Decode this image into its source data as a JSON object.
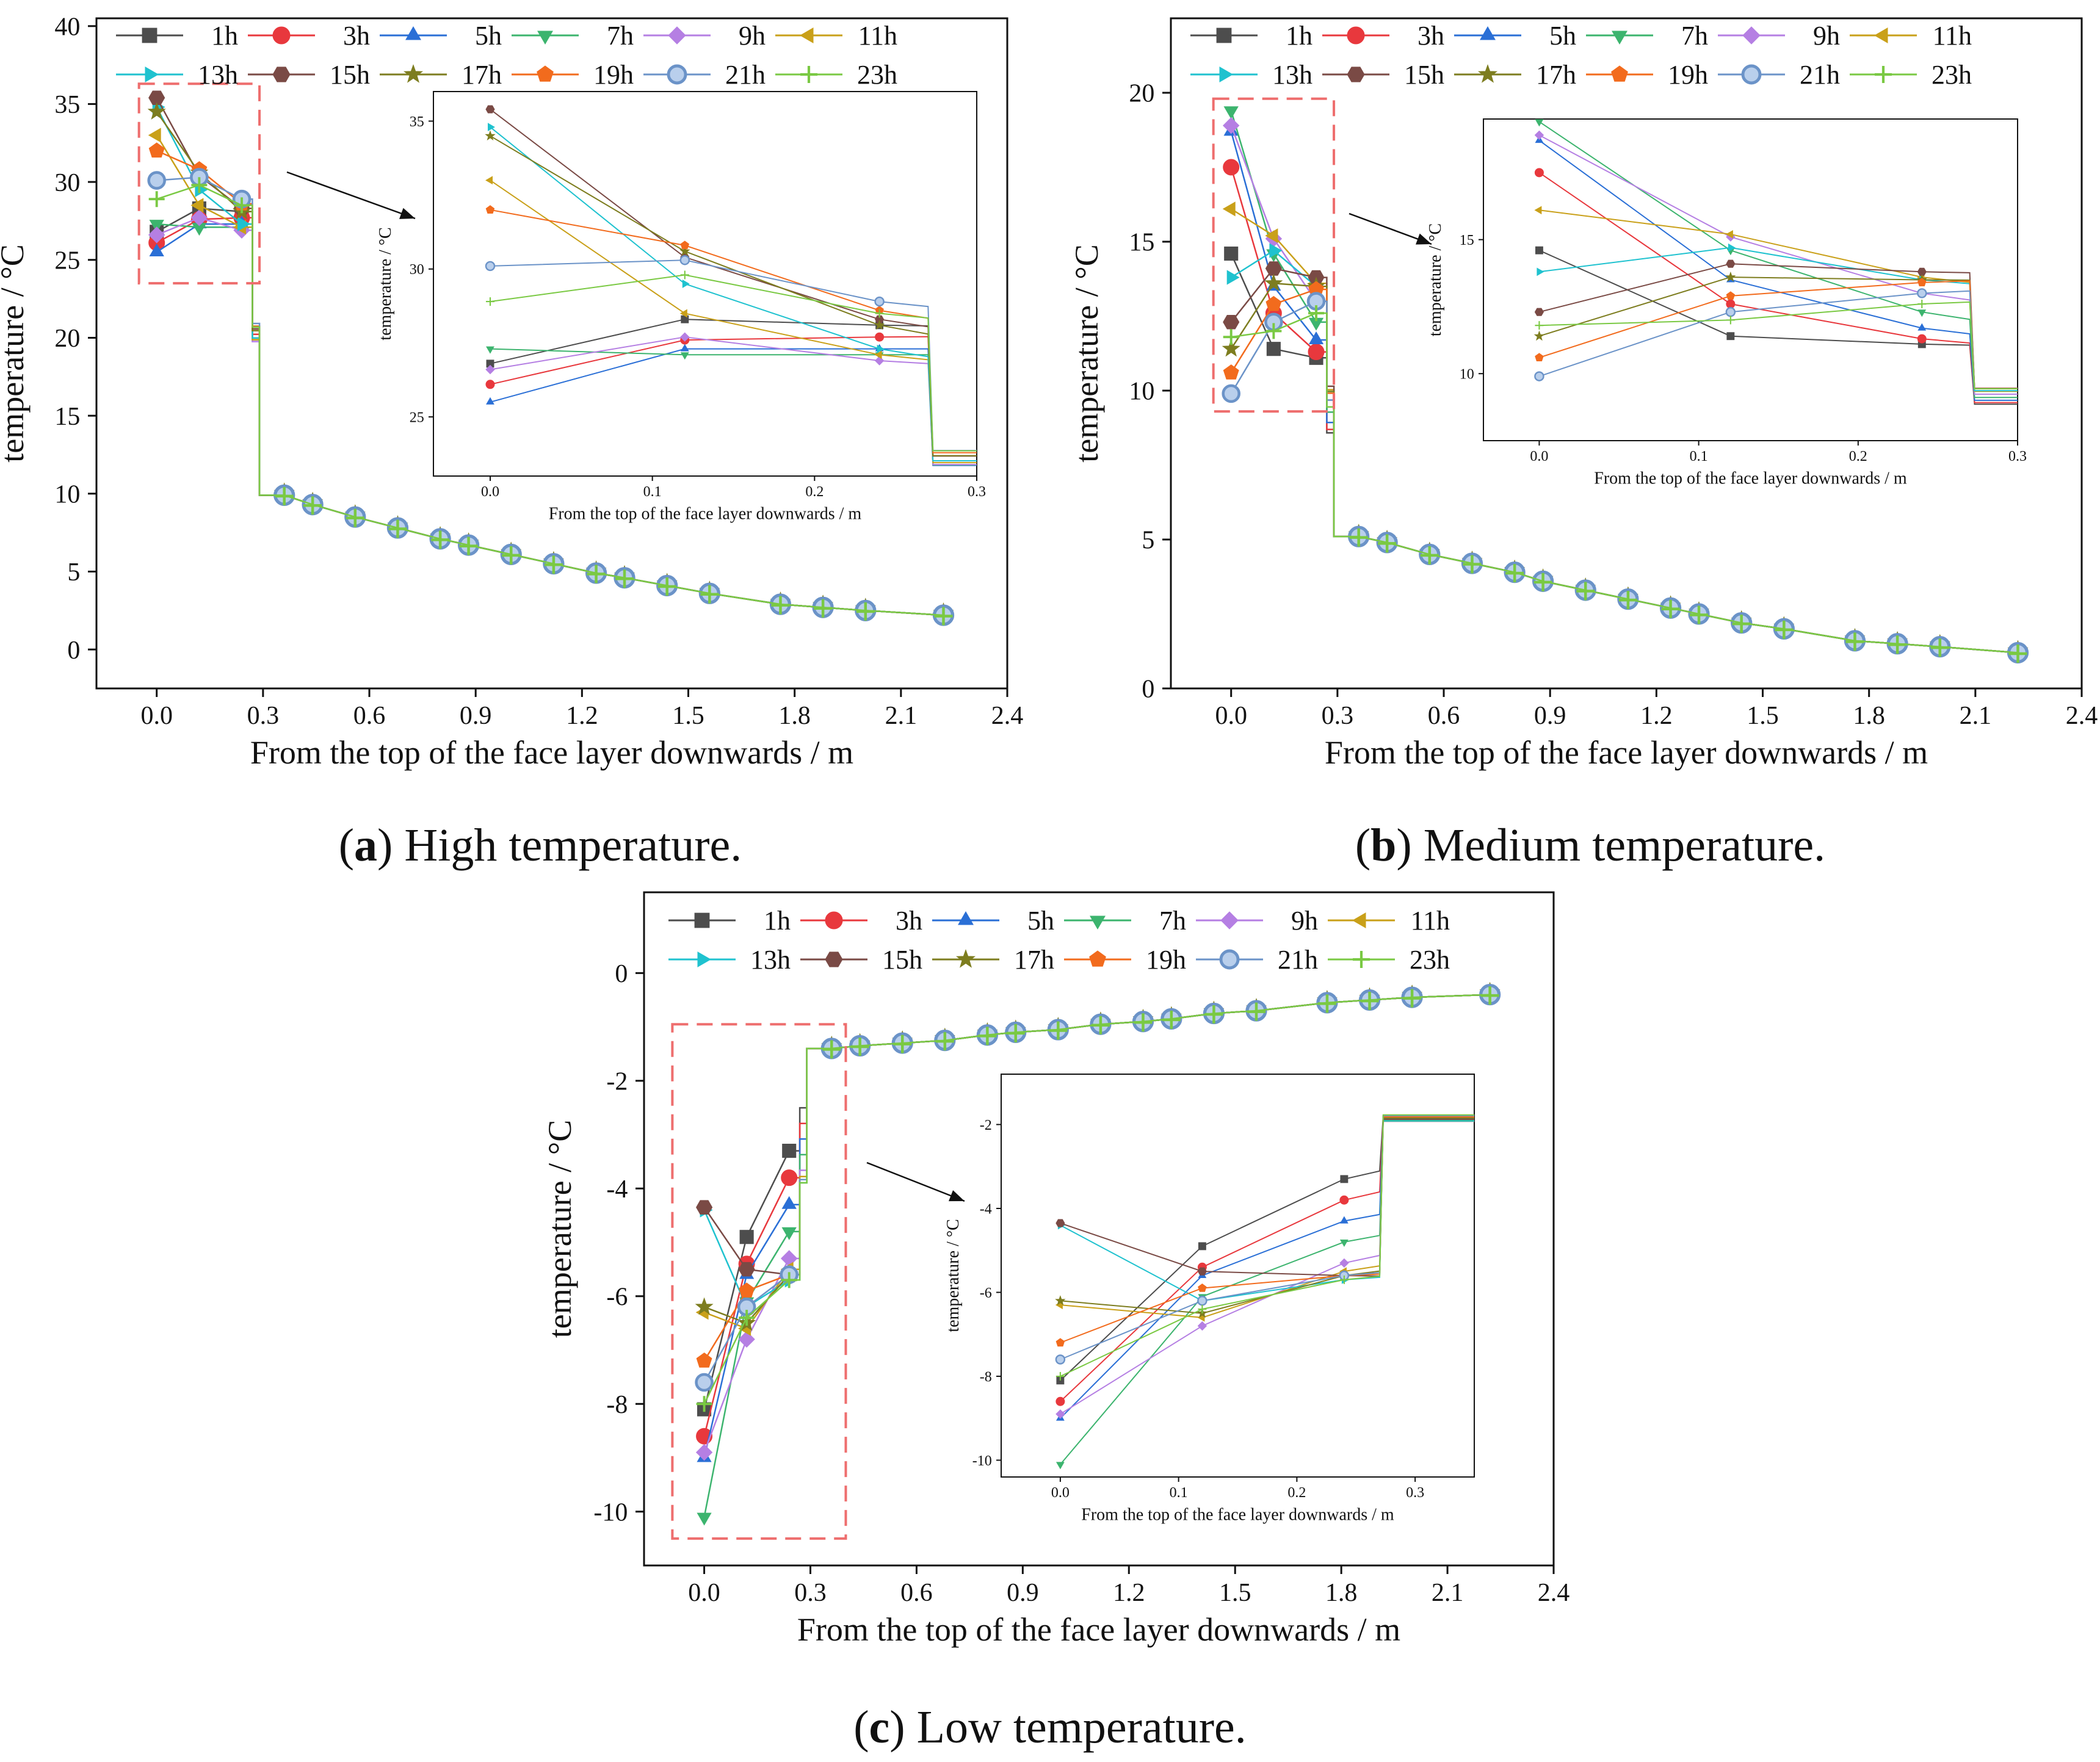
{
  "figure": {
    "panels": [
      {
        "letter": "a",
        "caption": "High temperature."
      },
      {
        "letter": "b",
        "caption": "Medium temperature."
      },
      {
        "letter": "c",
        "caption": "Low temperature."
      }
    ]
  },
  "series_styles": [
    {
      "name": "1h",
      "color": "#4d4d4d",
      "marker": "square"
    },
    {
      "name": "3h",
      "color": "#e8383d",
      "marker": "circle"
    },
    {
      "name": "5h",
      "color": "#2a6fd6",
      "marker": "triangle-up"
    },
    {
      "name": "7h",
      "color": "#3cb46e",
      "marker": "triangle-down"
    },
    {
      "name": "9h",
      "color": "#b57fe3",
      "marker": "diamond"
    },
    {
      "name": "11h",
      "color": "#c9a019",
      "marker": "triangle-left"
    },
    {
      "name": "13h",
      "color": "#1fc2cf",
      "marker": "triangle-right"
    },
    {
      "name": "15h",
      "color": "#7a4a45",
      "marker": "hexagon"
    },
    {
      "name": "17h",
      "color": "#7d7d1f",
      "marker": "star"
    },
    {
      "name": "19h",
      "color": "#f26b1d",
      "marker": "pentagon"
    },
    {
      "name": "21h",
      "color": "#6b93c8",
      "marker": "sphere"
    },
    {
      "name": "23h",
      "color": "#7ac943",
      "marker": "plus"
    }
  ],
  "chart_data": [
    {
      "type": "line",
      "panel": "a",
      "title": "High temperature.",
      "xlabel": "From the top of the face layer downwards / m",
      "ylabel": "temperature / °C",
      "xlim": [
        -0.17,
        2.4
      ],
      "ylim": [
        -2.5,
        40.5
      ],
      "xticks": [
        "0.0",
        "0.3",
        "0.6",
        "0.9",
        "1.2",
        "1.5",
        "1.8",
        "2.1",
        "2.4"
      ],
      "yticks": [
        "0",
        "5",
        "10",
        "15",
        "20",
        "25",
        "30",
        "35",
        "40"
      ],
      "series": [
        {
          "name": "1h",
          "top": [
            26.8,
            28.3,
            28.1
          ]
        },
        {
          "name": "3h",
          "top": [
            26.1,
            27.6,
            27.7
          ]
        },
        {
          "name": "5h",
          "top": [
            25.5,
            27.3,
            27.3
          ]
        },
        {
          "name": "7h",
          "top": [
            27.3,
            27.1,
            27.1
          ]
        },
        {
          "name": "9h",
          "top": [
            26.6,
            27.7,
            26.9
          ]
        },
        {
          "name": "11h",
          "top": [
            33.0,
            28.5,
            27.1
          ]
        },
        {
          "name": "13h",
          "top": [
            34.8,
            29.5,
            27.3
          ]
        },
        {
          "name": "15h",
          "top": [
            35.4,
            30.4,
            28.3
          ]
        },
        {
          "name": "17h",
          "top": [
            34.5,
            30.6,
            28.1
          ]
        },
        {
          "name": "19h",
          "top": [
            32.0,
            30.8,
            28.6
          ]
        },
        {
          "name": "21h",
          "top": [
            30.1,
            30.3,
            28.9
          ]
        },
        {
          "name": "23h",
          "top": [
            28.9,
            29.8,
            28.5
          ]
        }
      ],
      "bottom": {
        "x": [
          0.36,
          0.44,
          0.56,
          0.68,
          0.8,
          0.88,
          1.0,
          1.12,
          1.24,
          1.32,
          1.44,
          1.56,
          1.76,
          1.88,
          2.0,
          2.22
        ],
        "y": [
          9.9,
          9.3,
          8.5,
          7.8,
          7.1,
          6.7,
          6.1,
          5.5,
          4.9,
          4.6,
          4.1,
          3.6,
          2.9,
          2.7,
          2.5,
          2.2
        ]
      },
      "box": {
        "x": [
          -0.05,
          0.29
        ],
        "y": [
          23.5,
          36.3
        ]
      },
      "inset": {
        "xlabel": "From the top of the face layer downwards / m",
        "ylabel": "temperature / °C",
        "xlim": [
          -0.035,
          0.3
        ],
        "ylim": [
          23.0,
          36.0
        ],
        "xticks": [
          "0.0",
          "0.1",
          "0.2",
          "0.3"
        ],
        "yticks": [
          "25",
          "30",
          "35"
        ],
        "after_step": 23.0
      }
    },
    {
      "type": "line",
      "panel": "b",
      "title": "Medium temperature.",
      "xlabel": "From the top of the face layer downwards / m",
      "ylabel": "temperature / °C",
      "xlim": [
        -0.17,
        2.4
      ],
      "ylim": [
        0,
        22.5
      ],
      "xticks": [
        "0.0",
        "0.3",
        "0.6",
        "0.9",
        "1.2",
        "1.5",
        "1.8",
        "2.1",
        "2.4"
      ],
      "yticks": [
        "0",
        "5",
        "10",
        "15",
        "20"
      ],
      "series": [
        {
          "name": "1h",
          "top": [
            14.6,
            11.4,
            11.1
          ]
        },
        {
          "name": "3h",
          "top": [
            17.5,
            12.6,
            11.3
          ]
        },
        {
          "name": "5h",
          "top": [
            18.7,
            13.5,
            11.7
          ]
        },
        {
          "name": "7h",
          "top": [
            19.4,
            14.6,
            12.3
          ]
        },
        {
          "name": "9h",
          "top": [
            18.9,
            15.1,
            13.0
          ]
        },
        {
          "name": "11h",
          "top": [
            16.1,
            15.2,
            13.6
          ]
        },
        {
          "name": "13h",
          "top": [
            13.8,
            14.7,
            13.5
          ]
        },
        {
          "name": "15h",
          "top": [
            12.3,
            14.1,
            13.8
          ]
        },
        {
          "name": "17h",
          "top": [
            11.4,
            13.6,
            13.5
          ]
        },
        {
          "name": "19h",
          "top": [
            10.6,
            12.9,
            13.4
          ]
        },
        {
          "name": "21h",
          "top": [
            9.9,
            12.3,
            13.0
          ]
        },
        {
          "name": "23h",
          "top": [
            11.8,
            12.0,
            12.6
          ]
        }
      ],
      "bottom": {
        "x": [
          0.36,
          0.44,
          0.56,
          0.68,
          0.8,
          0.88,
          1.0,
          1.12,
          1.24,
          1.32,
          1.44,
          1.56,
          1.76,
          1.88,
          2.0,
          2.22
        ],
        "y": [
          5.1,
          4.9,
          4.5,
          4.2,
          3.9,
          3.6,
          3.3,
          3.0,
          2.7,
          2.5,
          2.2,
          2.0,
          1.6,
          1.5,
          1.4,
          1.2
        ]
      },
      "box": {
        "x": [
          -0.05,
          0.29
        ],
        "y": [
          9.3,
          19.8
        ]
      },
      "inset": {
        "xlabel": "From the top of the face layer downwards / m",
        "ylabel": "temperature / °C",
        "xlim": [
          -0.035,
          0.3
        ],
        "ylim": [
          7.5,
          19.5
        ],
        "xticks": [
          "0.0",
          "0.1",
          "0.2",
          "0.3"
        ],
        "yticks": [
          "10",
          "15"
        ],
        "after_step": 8.8
      }
    },
    {
      "type": "line",
      "panel": "c",
      "title": "Low temperature.",
      "xlabel": "From the top of the face layer downwards / m",
      "ylabel": "temperature / °C",
      "xlim": [
        -0.17,
        2.4
      ],
      "ylim": [
        -11,
        1.5
      ],
      "xticks": [
        "0.0",
        "0.3",
        "0.6",
        "0.9",
        "1.2",
        "1.5",
        "1.8",
        "2.1",
        "2.4"
      ],
      "yticks": [
        "0",
        "-2",
        "-4",
        "-6",
        "-8",
        "-10"
      ],
      "series": [
        {
          "name": "1h",
          "top": [
            -8.1,
            -4.9,
            -3.3
          ]
        },
        {
          "name": "3h",
          "top": [
            -8.6,
            -5.4,
            -3.8
          ]
        },
        {
          "name": "5h",
          "top": [
            -9.0,
            -5.6,
            -4.3
          ]
        },
        {
          "name": "7h",
          "top": [
            -10.1,
            -6.1,
            -4.8
          ]
        },
        {
          "name": "9h",
          "top": [
            -8.9,
            -6.8,
            -5.3
          ]
        },
        {
          "name": "11h",
          "top": [
            -6.3,
            -6.6,
            -5.5
          ]
        },
        {
          "name": "13h",
          "top": [
            -4.4,
            -6.2,
            -5.7
          ]
        },
        {
          "name": "15h",
          "top": [
            -4.35,
            -5.5,
            -5.6
          ]
        },
        {
          "name": "17h",
          "top": [
            -6.2,
            -6.5,
            -5.6
          ]
        },
        {
          "name": "19h",
          "top": [
            -7.2,
            -5.9,
            -5.6
          ]
        },
        {
          "name": "21h",
          "top": [
            -7.6,
            -6.2,
            -5.6
          ]
        },
        {
          "name": "23h",
          "top": [
            -8.0,
            -6.4,
            -5.7
          ]
        }
      ],
      "bottom": {
        "x": [
          0.36,
          0.44,
          0.56,
          0.68,
          0.8,
          0.88,
          1.0,
          1.12,
          1.24,
          1.32,
          1.44,
          1.56,
          1.76,
          1.88,
          2.0,
          2.22
        ],
        "y": [
          -1.4,
          -1.35,
          -1.3,
          -1.25,
          -1.15,
          -1.1,
          -1.05,
          -0.95,
          -0.9,
          -0.85,
          -0.75,
          -0.7,
          -0.55,
          -0.5,
          -0.45,
          -0.4
        ]
      },
      "box": {
        "x": [
          -0.09,
          0.4
        ],
        "y": [
          -10.5,
          -0.95
        ]
      },
      "inset": {
        "xlabel": "From the top of the face layer downwards / m",
        "ylabel": "temperature / °C",
        "xlim": [
          -0.05,
          0.35
        ],
        "ylim": [
          -10.4,
          -0.8
        ],
        "xticks": [
          "0.0",
          "0.1",
          "0.2",
          "0.3"
        ],
        "yticks": [
          "-2",
          "-4",
          "-6",
          "-8",
          "-10"
        ],
        "after_step": -1.4
      }
    }
  ]
}
